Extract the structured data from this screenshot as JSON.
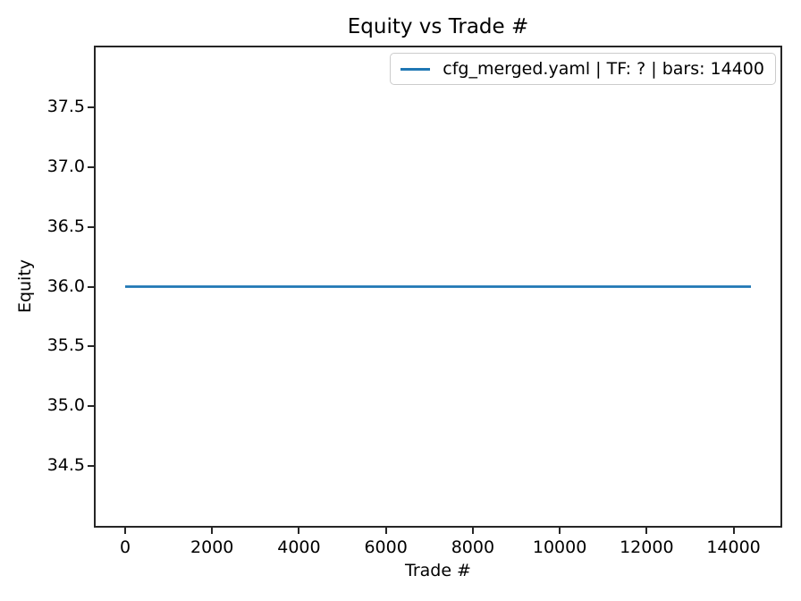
{
  "chart_data": {
    "type": "line",
    "title": "Equity vs Trade #",
    "xlabel": "Trade #",
    "ylabel": "Equity",
    "xlim": [
      -720,
      15120
    ],
    "ylim": [
      33.98,
      38.02
    ],
    "x_ticks": [
      0,
      2000,
      4000,
      6000,
      8000,
      10000,
      12000,
      14000
    ],
    "y_ticks": [
      34.5,
      35.0,
      35.5,
      36.0,
      36.5,
      37.0,
      37.5
    ],
    "y_tick_decimals": 1,
    "grid": false,
    "legend_position": "upper right",
    "axis_color": "#262626",
    "text_color": "#000000",
    "series": [
      {
        "name": "cfg_merged.yaml | TF: ? | bars: 14400",
        "color": "#1f77b4",
        "x": [
          0,
          14400
        ],
        "y": [
          36.0,
          36.0
        ]
      }
    ]
  }
}
